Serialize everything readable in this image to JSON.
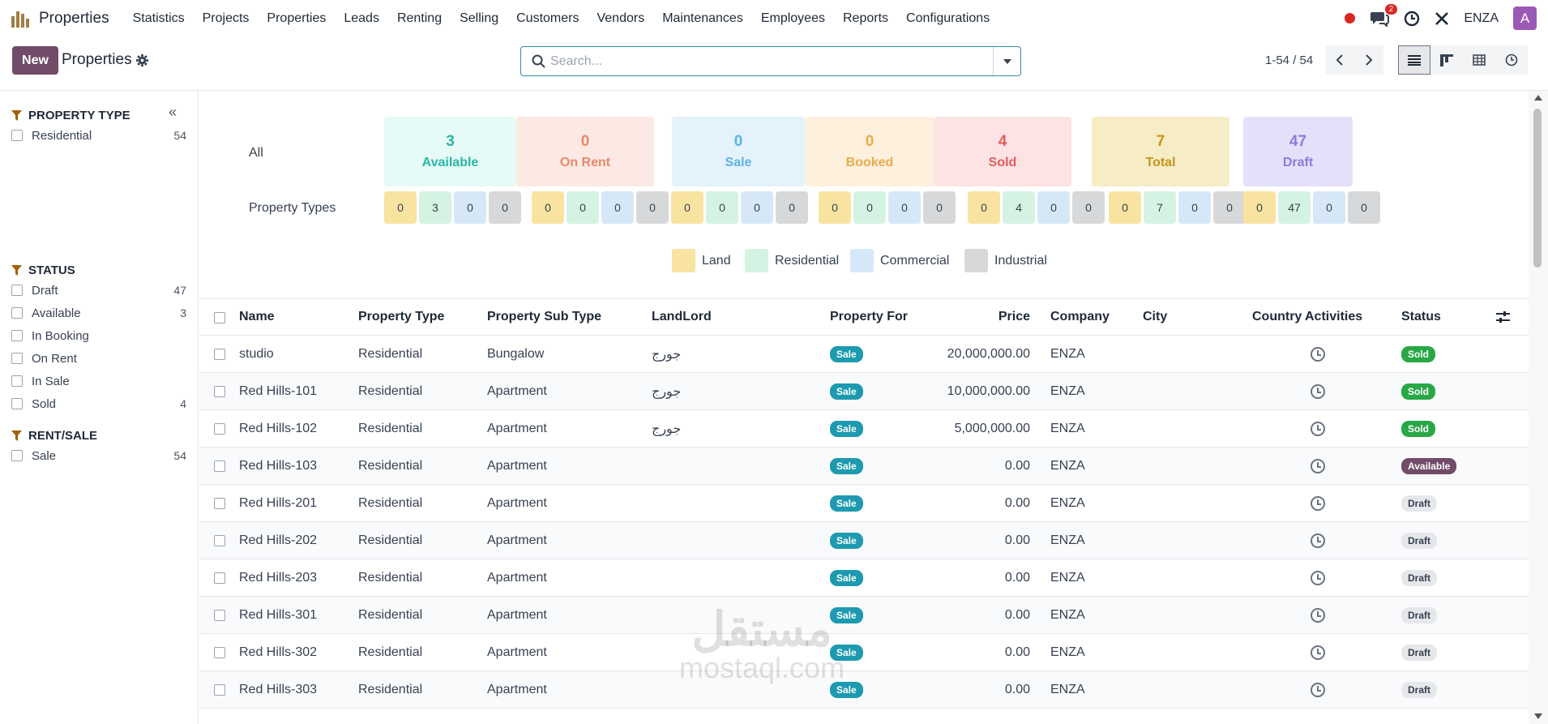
{
  "app": {
    "name": "Properties"
  },
  "menu": [
    "Statistics",
    "Projects",
    "Properties",
    "Leads",
    "Renting",
    "Selling",
    "Customers",
    "Vendors",
    "Maintenances",
    "Employees",
    "Reports",
    "Configurations"
  ],
  "systray": {
    "message_count": "2",
    "company": "ENZA",
    "avatar_letter": "A"
  },
  "control": {
    "new_label": "New",
    "title": "Properties",
    "search_placeholder": "Search...",
    "pager": "1-54 / 54"
  },
  "filters": {
    "groups": [
      {
        "title": "PROPERTY TYPE",
        "items": [
          {
            "label": "Residential",
            "count": "54"
          }
        ]
      },
      {
        "title": "STATUS",
        "items": [
          {
            "label": "Draft",
            "count": "47"
          },
          {
            "label": "Available",
            "count": "3"
          },
          {
            "label": "In Booking",
            "count": ""
          },
          {
            "label": "On Rent",
            "count": ""
          },
          {
            "label": "In Sale",
            "count": ""
          },
          {
            "label": "Sold",
            "count": "4"
          }
        ]
      },
      {
        "title": "RENT/SALE",
        "items": [
          {
            "label": "Sale",
            "count": "54"
          }
        ]
      }
    ]
  },
  "dashboard": {
    "all_label": "All",
    "types_label": "Property Types",
    "cards": [
      {
        "value": "3",
        "label": "Available",
        "bg": "#e6faf7",
        "fg": "#2bb5a5"
      },
      {
        "value": "0",
        "label": "On Rent",
        "bg": "#fde9e4",
        "fg": "#e8876b"
      },
      {
        "value": "0",
        "label": "Sale",
        "bg": "#e4f2fc",
        "fg": "#5db3e6"
      },
      {
        "value": "0",
        "label": "Booked",
        "bg": "#fdf1de",
        "fg": "#ecab4c"
      },
      {
        "value": "4",
        "label": "Sold",
        "bg": "#fde3e3",
        "fg": "#e25c5c"
      },
      {
        "value": "7",
        "label": "Total",
        "bg": "#f6ecc6",
        "fg": "#c8941b"
      },
      {
        "value": "47",
        "label": "Draft",
        "bg": "#e5e0fa",
        "fg": "#8c7bdc"
      }
    ],
    "mini_groups": [
      [
        "0",
        "3",
        "0",
        "0"
      ],
      [
        "0",
        "0",
        "0",
        "0"
      ],
      [
        "0",
        "0",
        "0",
        "0"
      ],
      [
        "0",
        "0",
        "0",
        "0"
      ],
      [
        "0",
        "4",
        "0",
        "0"
      ],
      [
        "0",
        "7",
        "0",
        "0"
      ],
      [
        "0",
        "47",
        "0",
        "0"
      ]
    ],
    "legend": [
      {
        "label": "Land",
        "color": "#f8e3a1"
      },
      {
        "label": "Residential",
        "color": "#d5f3e3"
      },
      {
        "label": "Commercial",
        "color": "#d6e8f8"
      },
      {
        "label": "Industrial",
        "color": "#d7d8da"
      }
    ]
  },
  "table": {
    "headers": {
      "name": "Name",
      "type": "Property Type",
      "subtype": "Property Sub Type",
      "landlord": "LandLord",
      "for": "Property For",
      "price": "Price",
      "company": "Company",
      "city": "City",
      "country": "Country",
      "activities": "Activities",
      "status": "Status"
    },
    "rows": [
      {
        "name": "studio",
        "type": "Residential",
        "subtype": "Bungalow",
        "landlord": "جورج",
        "for": "Sale",
        "price": "20,000,000.00",
        "company": "ENZA",
        "status": "Sold"
      },
      {
        "name": "Red Hills-101",
        "type": "Residential",
        "subtype": "Apartment",
        "landlord": "جورج",
        "for": "Sale",
        "price": "10,000,000.00",
        "company": "ENZA",
        "status": "Sold"
      },
      {
        "name": "Red Hills-102",
        "type": "Residential",
        "subtype": "Apartment",
        "landlord": "جورج",
        "for": "Sale",
        "price": "5,000,000.00",
        "company": "ENZA",
        "status": "Sold"
      },
      {
        "name": "Red Hills-103",
        "type": "Residential",
        "subtype": "Apartment",
        "landlord": "",
        "for": "Sale",
        "price": "0.00",
        "company": "ENZA",
        "status": "Available"
      },
      {
        "name": "Red Hills-201",
        "type": "Residential",
        "subtype": "Apartment",
        "landlord": "",
        "for": "Sale",
        "price": "0.00",
        "company": "ENZA",
        "status": "Draft"
      },
      {
        "name": "Red Hills-202",
        "type": "Residential",
        "subtype": "Apartment",
        "landlord": "",
        "for": "Sale",
        "price": "0.00",
        "company": "ENZA",
        "status": "Draft"
      },
      {
        "name": "Red Hills-203",
        "type": "Residential",
        "subtype": "Apartment",
        "landlord": "",
        "for": "Sale",
        "price": "0.00",
        "company": "ENZA",
        "status": "Draft"
      },
      {
        "name": "Red Hills-301",
        "type": "Residential",
        "subtype": "Apartment",
        "landlord": "",
        "for": "Sale",
        "price": "0.00",
        "company": "ENZA",
        "status": "Draft"
      },
      {
        "name": "Red Hills-302",
        "type": "Residential",
        "subtype": "Apartment",
        "landlord": "",
        "for": "Sale",
        "price": "0.00",
        "company": "ENZA",
        "status": "Draft"
      },
      {
        "name": "Red Hills-303",
        "type": "Residential",
        "subtype": "Apartment",
        "landlord": "",
        "for": "Sale",
        "price": "0.00",
        "company": "ENZA",
        "status": "Draft"
      }
    ]
  },
  "watermark": {
    "arabic": "مستقل",
    "latin": "mostaql.com"
  }
}
